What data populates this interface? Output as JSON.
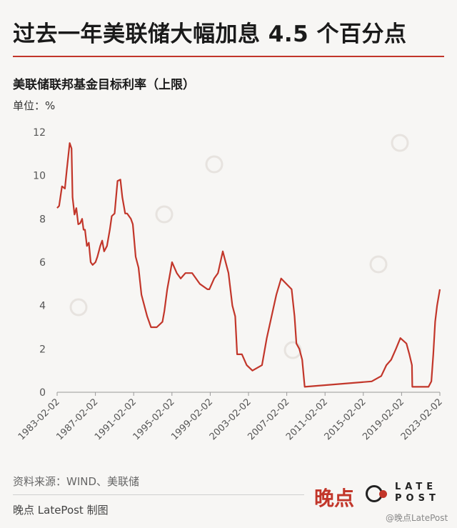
{
  "header": {
    "title": "过去一年美联储大幅加息 4.5 个百分点",
    "subtitle": "美联储联邦基金目标利率（上限）",
    "unit": "单位：%"
  },
  "footer": {
    "source": "资料来源：WIND、美联储",
    "credit": "晚点 LatePost 制图",
    "brand_cn": "晚点",
    "brand_en_line1": "LATE",
    "brand_en_line2": "POST",
    "watermark": "@晚点LatePost"
  },
  "colors": {
    "line": "#c2362a",
    "accent": "#c2362a",
    "axis": "#999999"
  },
  "chart_data": {
    "type": "line",
    "ylim": [
      0,
      12
    ],
    "yticks": [
      0,
      2,
      4,
      6,
      8,
      10,
      12
    ],
    "xlim": [
      1983.09,
      2023.09
    ],
    "xticks": [
      {
        "x": 1983.09,
        "label": "1983-02-02"
      },
      {
        "x": 1987.09,
        "label": "1987-02-02"
      },
      {
        "x": 1991.09,
        "label": "1991-02-02"
      },
      {
        "x": 1995.09,
        "label": "1995-02-02"
      },
      {
        "x": 1999.09,
        "label": "1999-02-02"
      },
      {
        "x": 2003.09,
        "label": "2003-02-02"
      },
      {
        "x": 2007.09,
        "label": "2007-02-02"
      },
      {
        "x": 2011.09,
        "label": "2011-02-02"
      },
      {
        "x": 2015.09,
        "label": "2015-02-02"
      },
      {
        "x": 2019.09,
        "label": "2019-02-02"
      },
      {
        "x": 2023.09,
        "label": "2023-02-02"
      }
    ],
    "series": [
      {
        "x": [
          1983.09,
          1983.3,
          1983.6,
          1983.9,
          1984.1,
          1984.4,
          1984.6,
          1984.7,
          1984.9,
          1985.1,
          1985.3,
          1985.5,
          1985.7,
          1985.85,
          1986.0,
          1986.2,
          1986.4,
          1986.6,
          1986.8,
          1987.1,
          1987.3,
          1987.6,
          1987.8,
          1988.0,
          1988.3,
          1988.6,
          1988.8,
          1989.1,
          1989.4,
          1989.7,
          1989.9,
          1990.2,
          1990.4,
          1990.8,
          1991.0,
          1991.3,
          1991.6,
          1991.9,
          1992.2,
          1992.5,
          1992.9,
          1993.5,
          1994.1,
          1994.3,
          1994.6,
          1994.9,
          1995.1,
          1995.6,
          1996.0,
          1996.5,
          1997.2,
          1998.0,
          1998.8,
          1999.0,
          1999.5,
          1999.9,
          2000.4,
          2001.0,
          2001.4,
          2001.7,
          2001.9,
          2002.4,
          2002.9,
          2003.5,
          2004.5,
          2005.0,
          2005.5,
          2006.0,
          2006.5,
          2007.6,
          2007.9,
          2008.1,
          2008.4,
          2008.7,
          2008.96,
          2015.96,
          2016.96,
          2017.5,
          2018.0,
          2018.5,
          2018.96,
          2019.6,
          2019.9,
          2020.17,
          2020.21,
          2021.9,
          2022.2,
          2022.4,
          2022.6,
          2022.8,
          2023.09
        ],
        "y": [
          8.5,
          8.6,
          9.5,
          9.4,
          10.25,
          11.5,
          11.25,
          9.0,
          8.2,
          8.5,
          7.75,
          7.8,
          8.0,
          7.5,
          7.5,
          6.75,
          6.9,
          6.0,
          5.875,
          6.0,
          6.25,
          6.75,
          7.0,
          6.5,
          6.75,
          7.5,
          8.125,
          8.25,
          9.75,
          9.81,
          9.0,
          8.25,
          8.25,
          8.0,
          7.75,
          6.25,
          5.75,
          4.5,
          4.0,
          3.5,
          3.0,
          3.0,
          3.25,
          3.75,
          4.75,
          5.5,
          6.0,
          5.5,
          5.25,
          5.5,
          5.5,
          5.0,
          4.75,
          4.75,
          5.25,
          5.5,
          6.5,
          5.5,
          4.0,
          3.5,
          1.75,
          1.75,
          1.25,
          1.0,
          1.25,
          2.5,
          3.5,
          4.5,
          5.25,
          4.75,
          3.5,
          2.25,
          2.0,
          1.5,
          0.25,
          0.5,
          0.75,
          1.25,
          1.5,
          2.0,
          2.5,
          2.25,
          1.75,
          1.25,
          0.25,
          0.25,
          0.5,
          1.75,
          3.25,
          4.0,
          4.75
        ]
      }
    ]
  }
}
